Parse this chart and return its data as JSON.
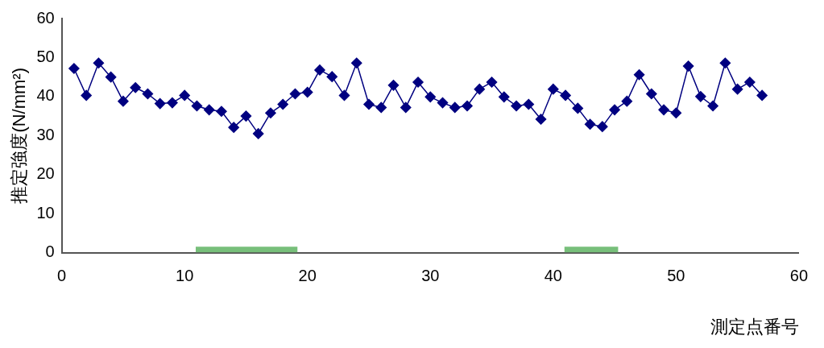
{
  "chart_data": {
    "type": "line",
    "xlabel": "測定点番号",
    "ylabel": "推定強度(N/mm²)",
    "x": [
      1,
      2,
      3,
      4,
      5,
      6,
      7,
      8,
      9,
      10,
      11,
      12,
      13,
      14,
      15,
      16,
      17,
      18,
      19,
      20,
      21,
      22,
      23,
      24,
      25,
      26,
      27,
      28,
      29,
      30,
      31,
      32,
      33,
      34,
      35,
      36,
      37,
      38,
      39,
      40,
      41,
      42,
      43,
      44,
      45,
      46,
      47,
      48,
      49,
      50,
      51,
      52,
      53,
      54,
      55,
      56,
      57
    ],
    "series": [
      {
        "type": "area",
        "marker": "none",
        "color": "#77bf7a",
        "x": [
          10.9,
          19.2,
          30,
          40.9,
          45.3
        ],
        "values": [
          1.5,
          1.5,
          null,
          1.5,
          1.5
        ]
      },
      {
        "color": "#000080",
        "values": [
          47.2,
          40.3,
          48.6,
          45,
          38.8,
          42.3,
          40.7,
          38.2,
          38.4,
          40.3,
          37.6,
          36.6,
          36.2,
          32.1,
          35,
          30.5,
          35.8,
          38,
          40.7,
          41.1,
          46.8,
          45.1,
          40.3,
          48.6,
          38,
          37.2,
          42.9,
          37.2,
          43.7,
          39.9,
          38.4,
          37.2,
          37.6,
          41.9,
          43.7,
          39.9,
          37.6,
          38,
          34.2,
          41.9,
          40.3,
          37,
          32.9,
          32.3,
          36.6,
          38.8,
          45.6,
          40.7,
          36.6,
          35.8,
          47.8,
          40,
          37.6,
          48.6,
          41.9,
          43.7,
          40.3
        ]
      }
    ],
    "xlim": [
      0,
      60
    ],
    "xticks": [
      0,
      10,
      20,
      30,
      40,
      50,
      60
    ],
    "ylim": [
      0,
      60
    ],
    "yticks": [
      0,
      10,
      20,
      30,
      40,
      50,
      60
    ],
    "grid": false,
    "legend": false,
    "marker": "diamond",
    "line_style": "solid"
  }
}
